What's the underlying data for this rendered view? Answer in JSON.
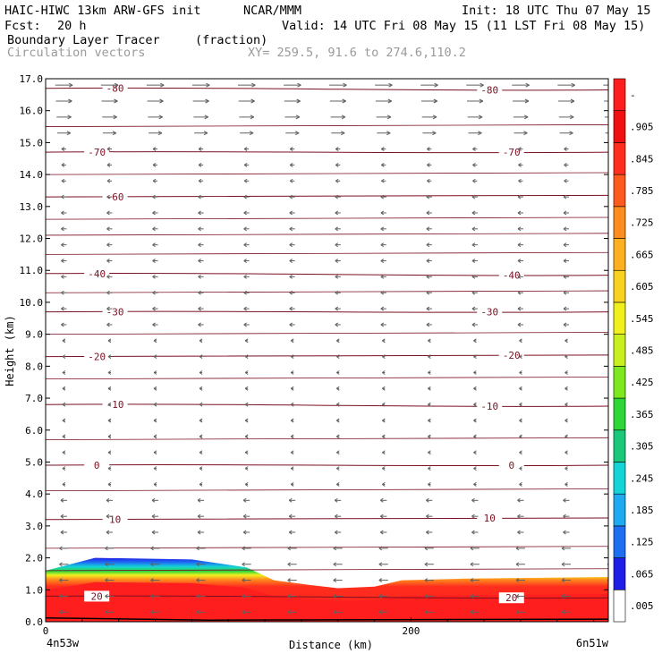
{
  "header": {
    "model": "HAIC-HIWC 13km ARW-GFS init",
    "org": "NCAR/MMM",
    "init": "Init: 18 UTC Thu 07 May 15",
    "fcst_label": "Fcst:",
    "fcst_value": "20 h",
    "valid": "Valid: 14 UTC Fri 08 May 15 (11 LST Fri 08 May 15)",
    "field": "Boundary Layer Tracer",
    "units": "(fraction)",
    "vectors": "Circulation vectors",
    "xy": "XY= 259.5, 91.6 to 274.6,110.2"
  },
  "colors": {
    "contour": "#7a1020",
    "vector": "#606060",
    "ground": "#000000"
  },
  "chart_data": {
    "type": "heatmap",
    "ylabel": "Height (km)",
    "xlabel": "Distance (km)",
    "ylim": [
      0,
      17
    ],
    "yticks": [
      "0.0",
      "1.0",
      "2.0",
      "3.0",
      "4.0",
      "5.0",
      "6.0",
      "7.0",
      "8.0",
      "9.0",
      "10.0",
      "11.0",
      "12.0",
      "13.0",
      "14.0",
      "15.0",
      "16.0",
      "17.0"
    ],
    "xlim": [
      0,
      308
    ],
    "xticks": [
      {
        "x": 0,
        "label": "0"
      },
      {
        "x": 200,
        "label": "200"
      }
    ],
    "x_endpoints": [
      "4n53w",
      "6n51w"
    ],
    "colorbar": {
      "levels": [
        ".005",
        ".065",
        ".125",
        ".185",
        ".245",
        ".305",
        ".365",
        ".425",
        ".485",
        ".545",
        ".605",
        ".665",
        ".725",
        ".785",
        ".845",
        ".905",
        "-"
      ],
      "colors": [
        "#ffffff",
        "#1e1ee8",
        "#1f6ef2",
        "#1ea9f0",
        "#13d4d6",
        "#19c878",
        "#2ed63a",
        "#7ee81e",
        "#c8f01e",
        "#f0f01e",
        "#f7d21e",
        "#ffb01e",
        "#ff8c1e",
        "#ff5a1e",
        "#ff2e1e",
        "#f01010",
        "#ff1e1e"
      ]
    },
    "temperature_contours": [
      {
        "label": "-80",
        "y": 16.7
      },
      {
        "label": "-70",
        "y": 14.7
      },
      {
        "label": "-60",
        "y": 13.3
      },
      {
        "label": "-40",
        "y": 10.9
      },
      {
        "label": "-30",
        "y": 9.7
      },
      {
        "label": "-20",
        "y": 8.3
      },
      {
        "label": "-10",
        "y": 6.8
      },
      {
        "label": "0",
        "y": 4.9
      },
      {
        "label": "10",
        "y": 3.2
      },
      {
        "label": "20",
        "y": 0.8
      }
    ],
    "tracer_top_km": [
      {
        "x": 0,
        "y": 1.6
      },
      {
        "x": 27,
        "y": 2.0
      },
      {
        "x": 80,
        "y": 1.95
      },
      {
        "x": 110,
        "y": 1.7
      },
      {
        "x": 125,
        "y": 1.3
      },
      {
        "x": 145,
        "y": 1.15
      },
      {
        "x": 160,
        "y": 1.05
      },
      {
        "x": 180,
        "y": 1.1
      },
      {
        "x": 195,
        "y": 1.3
      },
      {
        "x": 230,
        "y": 1.35
      },
      {
        "x": 308,
        "y": 1.4
      }
    ]
  }
}
